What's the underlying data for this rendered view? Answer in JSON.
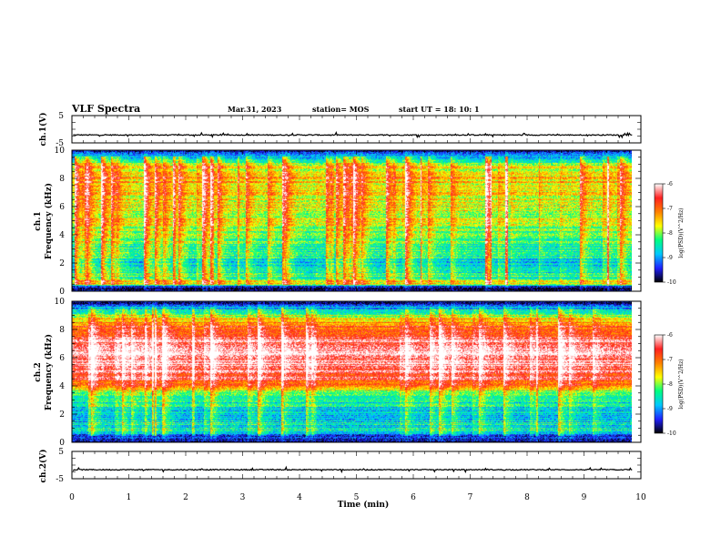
{
  "header": {
    "title": "VLF Spectra",
    "date": "Mar.31, 2023",
    "station": "station= MOS",
    "start_ut": "start UT =  18: 10: 1"
  },
  "chart_data": [
    {
      "type": "line",
      "name": "ch1-waveform",
      "ylabel": "ch.1(V)",
      "ylim": [
        -5,
        5
      ],
      "yticks": [
        "5",
        "-5"
      ],
      "baseline": -2.1,
      "xlim": [
        0,
        10
      ]
    },
    {
      "type": "heatmap",
      "name": "ch1-spectrogram",
      "ylabel_line1": "ch.1",
      "ylabel_line2": "Frequency (kHz)",
      "ylim": [
        0,
        10
      ],
      "yticks": [
        "0",
        "2",
        "4",
        "6",
        "8",
        "10"
      ],
      "xlim": [
        0,
        9.85
      ],
      "band_profile": [
        {
          "f": 0.0,
          "level": 0.0
        },
        {
          "f": 0.3,
          "level": 0.15
        },
        {
          "f": 0.5,
          "level": 0.55
        },
        {
          "f": 1.0,
          "level": 0.4
        },
        {
          "f": 2.0,
          "level": 0.3
        },
        {
          "f": 3.5,
          "level": 0.42
        },
        {
          "f": 5.0,
          "level": 0.5
        },
        {
          "f": 6.5,
          "level": 0.55
        },
        {
          "f": 8.0,
          "level": 0.6
        },
        {
          "f": 9.0,
          "level": 0.52
        },
        {
          "f": 9.5,
          "level": 0.25
        },
        {
          "f": 10.0,
          "level": 0.05
        }
      ],
      "colorbar": {
        "label": "log(PSD)(V^2/Hz)",
        "range": [
          -10,
          -6
        ],
        "ticks": [
          "-6",
          "-7",
          "-8",
          "-9",
          "-10"
        ]
      }
    },
    {
      "type": "heatmap",
      "name": "ch2-spectrogram",
      "ylabel_line1": "ch.2",
      "ylabel_line2": "Frequency (kHz)",
      "ylim": [
        0,
        10
      ],
      "yticks": [
        "0",
        "2",
        "4",
        "6",
        "8",
        "10"
      ],
      "xlim": [
        0,
        9.85
      ],
      "band_profile": [
        {
          "f": 0.0,
          "level": 0.0
        },
        {
          "f": 0.3,
          "level": 0.15
        },
        {
          "f": 0.8,
          "level": 0.35
        },
        {
          "f": 2.0,
          "level": 0.28
        },
        {
          "f": 3.5,
          "level": 0.45
        },
        {
          "f": 4.3,
          "level": 0.8
        },
        {
          "f": 5.5,
          "level": 0.92
        },
        {
          "f": 7.0,
          "level": 0.93
        },
        {
          "f": 8.3,
          "level": 0.75
        },
        {
          "f": 9.0,
          "level": 0.5
        },
        {
          "f": 9.6,
          "level": 0.25
        },
        {
          "f": 10.0,
          "level": 0.05
        }
      ],
      "colorbar": {
        "label": "log(PSD)(V^2/Hz)",
        "range": [
          -10,
          -6
        ],
        "ticks": [
          "-6",
          "-7",
          "-8",
          "-9",
          "-10"
        ]
      }
    },
    {
      "type": "line",
      "name": "ch2-waveform",
      "ylabel": "ch.2(V)",
      "ylim": [
        -5,
        5
      ],
      "yticks": [
        "5",
        "-5"
      ],
      "baseline": -1.7,
      "xlim": [
        0,
        10
      ]
    }
  ],
  "x_axis": {
    "label": "Time (min)",
    "range": [
      0,
      10
    ],
    "ticks": [
      "0",
      "1",
      "2",
      "3",
      "4",
      "5",
      "6",
      "7",
      "8",
      "9",
      "10"
    ]
  },
  "colorscale": [
    "#000000",
    "#2020ff",
    "#00c8ff",
    "#00ff80",
    "#ffff00",
    "#ff8000",
    "#ff2020",
    "#ffffff"
  ]
}
